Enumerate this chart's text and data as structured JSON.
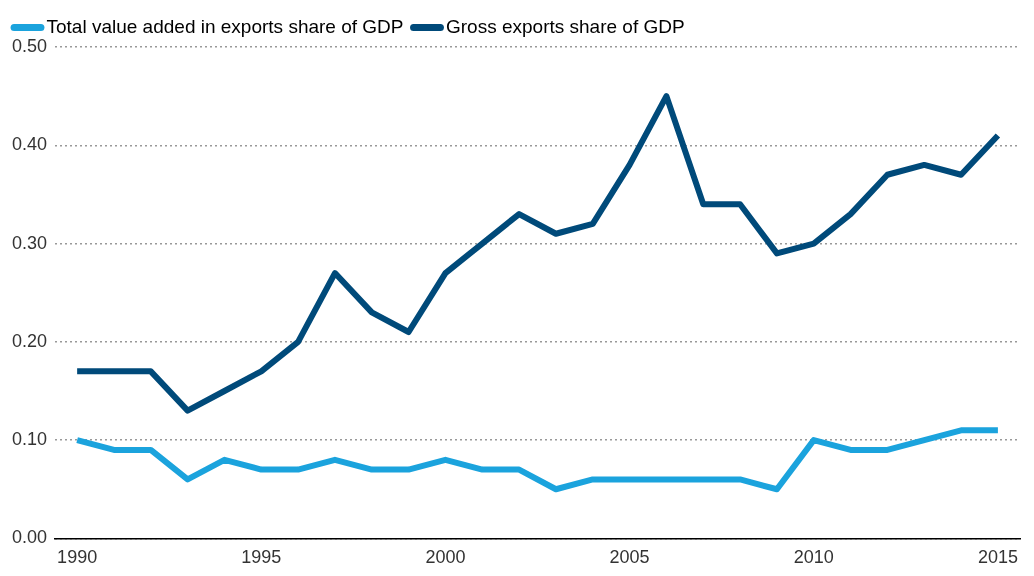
{
  "chart_data": {
    "type": "line",
    "x": [
      1990,
      1991,
      1992,
      1993,
      1994,
      1995,
      1996,
      1997,
      1998,
      1999,
      2000,
      2001,
      2002,
      2003,
      2004,
      2005,
      2006,
      2007,
      2008,
      2009,
      2010,
      2011,
      2012,
      2013,
      2014,
      2015
    ],
    "series": [
      {
        "name": "Total value added in exports share of GDP",
        "color": "#1ba3dd",
        "values": [
          0.1,
          0.09,
          0.09,
          0.06,
          0.08,
          0.07,
          0.07,
          0.08,
          0.07,
          0.07,
          0.08,
          0.07,
          0.07,
          0.05,
          0.06,
          0.06,
          0.06,
          0.06,
          0.06,
          0.05,
          0.1,
          0.09,
          0.09,
          0.1,
          0.11,
          0.11
        ]
      },
      {
        "name": "Gross exports share of GDP",
        "color": "#004a7a",
        "values": [
          0.17,
          0.17,
          0.17,
          0.13,
          0.15,
          0.17,
          0.2,
          0.27,
          0.23,
          0.21,
          0.27,
          0.3,
          0.33,
          0.31,
          0.32,
          0.38,
          0.45,
          0.34,
          0.34,
          0.29,
          0.3,
          0.33,
          0.37,
          0.38,
          0.37,
          0.41
        ]
      }
    ],
    "xlim": [
      1989.4,
      2015.6
    ],
    "xticks": [
      1990,
      1995,
      2000,
      2005,
      2010,
      2015
    ],
    "ylim": [
      0,
      0.5
    ],
    "yticks": [
      {
        "value": 0,
        "label": "0.00"
      },
      {
        "value": 0.1,
        "label": "0.10"
      },
      {
        "value": 0.2,
        "label": "0.20"
      },
      {
        "value": 0.3,
        "label": "0.30"
      },
      {
        "value": 0.4,
        "label": "0.40"
      },
      {
        "value": 0.5,
        "label": "0.50"
      }
    ],
    "grid": "y",
    "legend": "top left",
    "marker": "none",
    "line_style": "solid"
  }
}
